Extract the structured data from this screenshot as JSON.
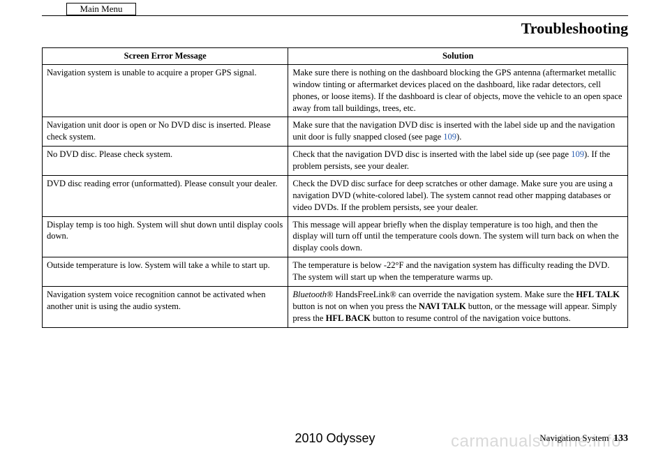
{
  "mainMenuLabel": "Main Menu",
  "sectionTitle": "Troubleshooting",
  "table": {
    "headers": {
      "left": "Screen Error Message",
      "right": "Solution"
    },
    "rows": [
      {
        "msg": "Navigation system is unable to acquire a proper GPS signal.",
        "sol": "Make sure there is nothing on the dashboard blocking the GPS antenna (aftermarket metallic window tinting or aftermarket devices placed on the dashboard, like radar detectors, cell phones, or loose items). If the dashboard is clear of objects, move the vehicle to an open space away from tall buildings, trees, etc."
      },
      {
        "msg": "Navigation unit door is open or No DVD disc is inserted. Please check system.",
        "sol_pre": "Make sure that the navigation DVD disc is inserted with the label side up and the navigation unit door is fully snapped closed (see page ",
        "sol_link": "109",
        "sol_post": ")."
      },
      {
        "msg": "No DVD disc. Please check system.",
        "sol_pre": "Check that the navigation DVD disc is inserted with the label side up (see page ",
        "sol_link": "109",
        "sol_post": "). If the problem persists, see your dealer."
      },
      {
        "msg": "DVD disc reading error (unformatted). Please consult your dealer.",
        "sol": "Check the DVD disc surface for deep scratches or other damage. Make sure you are using a navigation DVD (white-colored label). The system cannot read other mapping databases or video DVDs. If the problem persists, see your dealer."
      },
      {
        "msg": "Display temp is too high. System will shut down until display cools down.",
        "sol": "This message will appear briefly when the display temperature is too high, and then the display will turn off until the temperature cools down. The system will turn back on when the display cools down."
      },
      {
        "msg": "Outside temperature is low. System will take a while to start up.",
        "sol": "The temperature is below -22°F and the navigation system has difficulty reading the DVD. The system will start up when the temperature warms up."
      },
      {
        "msg": "Navigation system voice recognition cannot be activated when another unit is using the audio system.",
        "sol_parts": {
          "a": "Bluetooth",
          "b": "® HandsFreeLink® can override the navigation system. Make sure the ",
          "c": "HFL TALK",
          "d": " button is not on when you press the ",
          "e": "NAVI TALK",
          "f": " button, or the message will appear. Simply press the ",
          "g": "HFL BACK",
          "h": " button to resume control of the navigation voice buttons."
        }
      }
    ]
  },
  "footer": {
    "model": "2010 Odyssey",
    "navLabel": "Navigation System",
    "pageNum": "133",
    "watermark": "carmanualsonline.info"
  },
  "colors": {
    "link": "#2a5db0",
    "watermark": "#d9d9d9"
  }
}
